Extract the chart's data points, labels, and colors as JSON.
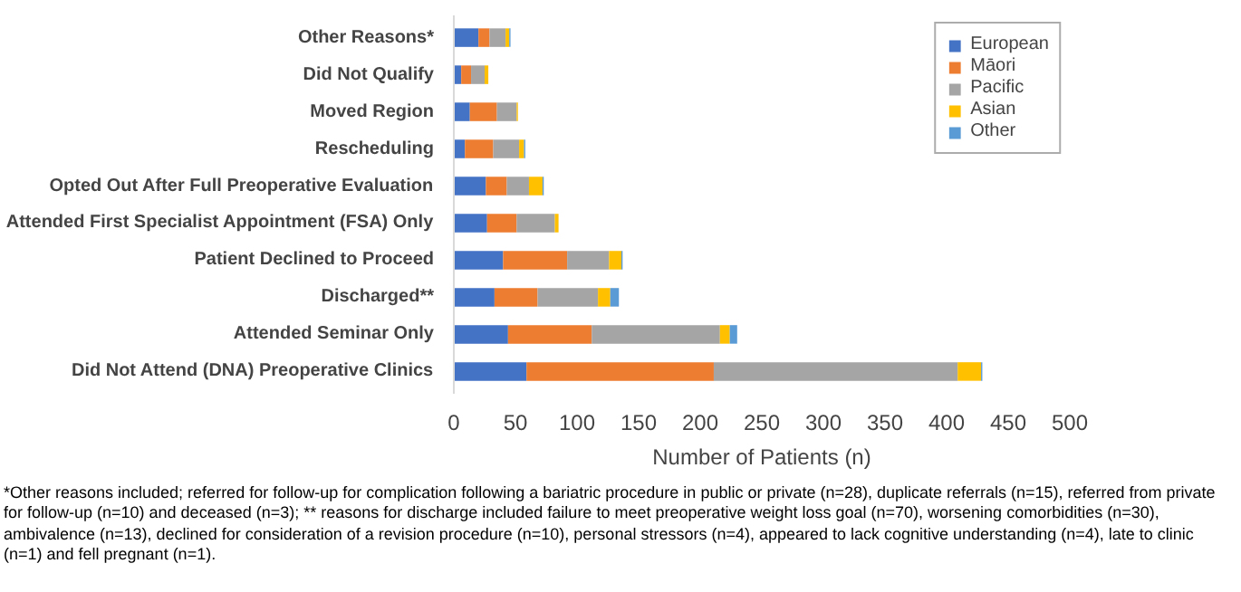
{
  "chart_data": {
    "type": "bar",
    "orientation": "horizontal",
    "stacked": true,
    "xlabel": "Number of Patients (n)",
    "categories": [
      "Other Reasons*",
      "Did Not Qualify",
      "Moved Region",
      "Rescheduling",
      "Opted Out After Full Preoperative Evaluation",
      "Attended First Specialist Appointment (FSA) Only",
      "Patient Declined to Proceed",
      "Discharged**",
      "Attended Seminar Only",
      "Did Not Attend (DNA) Preoperative Clinics"
    ],
    "series": [
      {
        "name": "European",
        "color": "#4472c4",
        "values": [
          20,
          6,
          13,
          9,
          26,
          27,
          40,
          33,
          44,
          59
        ]
      },
      {
        "name": "Māori",
        "color": "#ed7d31",
        "values": [
          9,
          8,
          22,
          23,
          17,
          24,
          52,
          35,
          68,
          152
        ]
      },
      {
        "name": "Pacific",
        "color": "#a5a5a5",
        "values": [
          13,
          11,
          16,
          21,
          18,
          31,
          34,
          49,
          104,
          198
        ]
      },
      {
        "name": "Asian",
        "color": "#ffc000",
        "values": [
          3,
          3,
          1,
          4,
          11,
          3,
          10,
          10,
          8,
          19
        ]
      },
      {
        "name": "Other",
        "color": "#5b9bd5",
        "values": [
          1,
          0,
          0,
          1,
          1,
          0,
          1,
          7,
          6,
          1
        ]
      }
    ],
    "xlim": [
      0,
      500
    ],
    "xticks": [
      0,
      50,
      100,
      150,
      200,
      250,
      300,
      350,
      400,
      450,
      500
    ],
    "legend": "top right",
    "annotations": [
      "*Other reasons included; referred for follow-up for complication following a bariatric procedure in public or private (n=28), duplicate referrals (n=15), referred from private for follow-up (n=10) and deceased (n=3); ** reasons for discharge included failure to meet preoperative weight loss goal (n=70), worsening comorbidities (n=30), ambivalence (n=13), declined for consideration of a revision procedure (n=10), personal stressors (n=4), appeared to lack cognitive understanding (n=4), late to clinic (n=1) and fell pregnant (n=1)."
    ]
  }
}
